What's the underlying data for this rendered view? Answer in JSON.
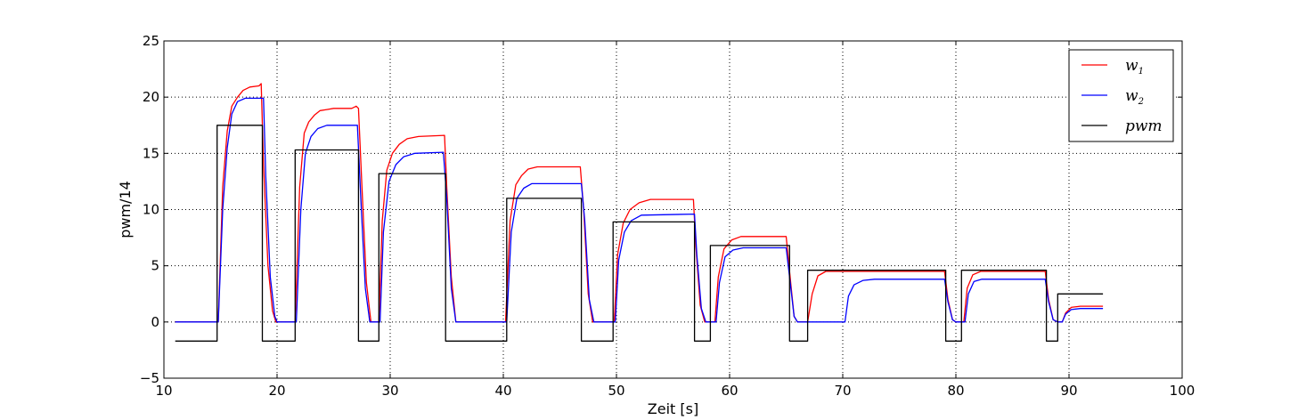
{
  "chart_data": {
    "type": "line",
    "xlabel": "Zeit [s]",
    "ylabel": "pwm/14",
    "xlim": [
      10,
      100
    ],
    "ylim": [
      -5,
      25
    ],
    "xticks": [
      10,
      20,
      30,
      40,
      50,
      60,
      70,
      80,
      90,
      100
    ],
    "yticks": [
      -5,
      0,
      5,
      10,
      15,
      20,
      25
    ],
    "grid": true,
    "legend_position": "top-right",
    "series": [
      {
        "name": "w_1",
        "legend_base": "w",
        "legend_sub": "1",
        "color": "#ff0000",
        "points": [
          [
            11,
            0
          ],
          [
            14.8,
            0
          ],
          [
            15.2,
            12
          ],
          [
            15.6,
            17
          ],
          [
            16.0,
            19.2
          ],
          [
            16.5,
            20.0
          ],
          [
            17.0,
            20.6
          ],
          [
            17.6,
            20.9
          ],
          [
            18.4,
            21.0
          ],
          [
            18.6,
            21.2
          ],
          [
            18.8,
            14
          ],
          [
            19.2,
            5
          ],
          [
            19.6,
            1.0
          ],
          [
            19.9,
            0
          ],
          [
            21.6,
            0
          ],
          [
            22.0,
            12
          ],
          [
            22.4,
            16.8
          ],
          [
            22.8,
            17.8
          ],
          [
            23.3,
            18.4
          ],
          [
            23.8,
            18.8
          ],
          [
            24.4,
            18.9
          ],
          [
            25.0,
            19.0
          ],
          [
            26.6,
            19.0
          ],
          [
            27.0,
            19.2
          ],
          [
            27.2,
            19.0
          ],
          [
            27.5,
            12
          ],
          [
            27.9,
            3.5
          ],
          [
            28.3,
            0
          ],
          [
            29.0,
            0
          ],
          [
            29.3,
            9
          ],
          [
            29.7,
            13.5
          ],
          [
            30.2,
            15.0
          ],
          [
            30.8,
            15.8
          ],
          [
            31.5,
            16.3
          ],
          [
            32.5,
            16.5
          ],
          [
            34.8,
            16.6
          ],
          [
            35.0,
            12
          ],
          [
            35.4,
            4
          ],
          [
            35.8,
            0
          ],
          [
            40.2,
            0
          ],
          [
            40.6,
            9
          ],
          [
            41.1,
            12.2
          ],
          [
            41.6,
            13.0
          ],
          [
            42.2,
            13.6
          ],
          [
            43.0,
            13.8
          ],
          [
            46.8,
            13.8
          ],
          [
            47.1,
            10
          ],
          [
            47.5,
            2.5
          ],
          [
            47.9,
            0
          ],
          [
            49.8,
            0
          ],
          [
            50.1,
            6
          ],
          [
            50.6,
            8.8
          ],
          [
            51.2,
            10.0
          ],
          [
            52.0,
            10.6
          ],
          [
            53.0,
            10.9
          ],
          [
            56.8,
            10.9
          ],
          [
            57.0,
            7
          ],
          [
            57.4,
            1.5
          ],
          [
            57.8,
            0
          ],
          [
            58.7,
            0
          ],
          [
            59.0,
            4
          ],
          [
            59.5,
            6.5
          ],
          [
            60.2,
            7.3
          ],
          [
            61.0,
            7.6
          ],
          [
            65.0,
            7.6
          ],
          [
            65.3,
            4.5
          ],
          [
            65.7,
            0.5
          ],
          [
            66.0,
            0
          ],
          [
            66.9,
            0
          ],
          [
            67.3,
            2.5
          ],
          [
            67.8,
            4.1
          ],
          [
            68.5,
            4.5
          ],
          [
            79.0,
            4.5
          ],
          [
            79.3,
            2
          ],
          [
            79.7,
            0.2
          ],
          [
            80.0,
            0
          ],
          [
            80.7,
            0
          ],
          [
            81.0,
            3.0
          ],
          [
            81.5,
            4.2
          ],
          [
            82.2,
            4.5
          ],
          [
            87.9,
            4.5
          ],
          [
            88.2,
            2
          ],
          [
            88.6,
            0.2
          ],
          [
            89.0,
            0
          ],
          [
            89.4,
            0
          ],
          [
            89.7,
            0.8
          ],
          [
            90.2,
            1.3
          ],
          [
            91.0,
            1.4
          ],
          [
            93.0,
            1.4
          ]
        ]
      },
      {
        "name": "w_2",
        "legend_base": "w",
        "legend_sub": "2",
        "color": "#0000ff",
        "points": [
          [
            11,
            0
          ],
          [
            14.8,
            0
          ],
          [
            15.2,
            10
          ],
          [
            15.6,
            15.5
          ],
          [
            16.0,
            18.5
          ],
          [
            16.5,
            19.6
          ],
          [
            17.2,
            19.9
          ],
          [
            18.8,
            19.9
          ],
          [
            19.0,
            13
          ],
          [
            19.4,
            4
          ],
          [
            19.8,
            0.5
          ],
          [
            20.0,
            0
          ],
          [
            21.7,
            0
          ],
          [
            22.1,
            10
          ],
          [
            22.5,
            15.0
          ],
          [
            23.0,
            16.5
          ],
          [
            23.6,
            17.2
          ],
          [
            24.4,
            17.5
          ],
          [
            27.1,
            17.5
          ],
          [
            27.4,
            11
          ],
          [
            27.8,
            3
          ],
          [
            28.2,
            0
          ],
          [
            29.1,
            0
          ],
          [
            29.4,
            8
          ],
          [
            29.9,
            12.5
          ],
          [
            30.5,
            14.0
          ],
          [
            31.2,
            14.7
          ],
          [
            32.2,
            15.0
          ],
          [
            34.7,
            15.1
          ],
          [
            35.0,
            11
          ],
          [
            35.4,
            3
          ],
          [
            35.8,
            0
          ],
          [
            40.3,
            0
          ],
          [
            40.7,
            8
          ],
          [
            41.2,
            11.0
          ],
          [
            41.8,
            11.9
          ],
          [
            42.5,
            12.3
          ],
          [
            46.9,
            12.3
          ],
          [
            47.2,
            9
          ],
          [
            47.6,
            2
          ],
          [
            48.0,
            0
          ],
          [
            49.9,
            0
          ],
          [
            50.2,
            5.5
          ],
          [
            50.7,
            8.0
          ],
          [
            51.3,
            9.0
          ],
          [
            52.2,
            9.5
          ],
          [
            56.9,
            9.6
          ],
          [
            57.1,
            6
          ],
          [
            57.5,
            1.2
          ],
          [
            57.9,
            0
          ],
          [
            58.8,
            0
          ],
          [
            59.1,
            3.5
          ],
          [
            59.6,
            5.8
          ],
          [
            60.3,
            6.4
          ],
          [
            61.2,
            6.6
          ],
          [
            65.0,
            6.6
          ],
          [
            65.3,
            4
          ],
          [
            65.7,
            0.5
          ],
          [
            66.0,
            0
          ],
          [
            70.2,
            0
          ],
          [
            70.5,
            2.3
          ],
          [
            71.0,
            3.3
          ],
          [
            71.8,
            3.7
          ],
          [
            72.8,
            3.8
          ],
          [
            79.0,
            3.8
          ],
          [
            79.3,
            1.8
          ],
          [
            79.7,
            0.2
          ],
          [
            80.0,
            0
          ],
          [
            80.8,
            0
          ],
          [
            81.1,
            2.5
          ],
          [
            81.6,
            3.6
          ],
          [
            82.3,
            3.8
          ],
          [
            87.9,
            3.8
          ],
          [
            88.2,
            1.8
          ],
          [
            88.6,
            0.2
          ],
          [
            89.0,
            0
          ],
          [
            89.4,
            0
          ],
          [
            89.7,
            0.7
          ],
          [
            90.2,
            1.1
          ],
          [
            91.0,
            1.2
          ],
          [
            93.0,
            1.2
          ]
        ]
      },
      {
        "name": "pwm",
        "legend_base": "pwm",
        "legend_sub": "",
        "color": "#000000",
        "points": [
          [
            11,
            -1.7
          ],
          [
            14.7,
            -1.7
          ],
          [
            14.7,
            17.5
          ],
          [
            18.7,
            17.5
          ],
          [
            18.7,
            -1.7
          ],
          [
            21.6,
            -1.7
          ],
          [
            21.6,
            15.3
          ],
          [
            27.2,
            15.3
          ],
          [
            27.2,
            -1.7
          ],
          [
            29.0,
            -1.7
          ],
          [
            29.0,
            13.2
          ],
          [
            34.9,
            13.2
          ],
          [
            34.9,
            -1.7
          ],
          [
            40.3,
            -1.7
          ],
          [
            40.3,
            11.0
          ],
          [
            46.9,
            11.0
          ],
          [
            46.9,
            -1.7
          ],
          [
            49.7,
            -1.7
          ],
          [
            49.7,
            8.9
          ],
          [
            56.9,
            8.9
          ],
          [
            56.9,
            -1.7
          ],
          [
            58.3,
            -1.7
          ],
          [
            58.3,
            6.8
          ],
          [
            65.3,
            6.8
          ],
          [
            65.3,
            -1.7
          ],
          [
            66.9,
            -1.7
          ],
          [
            66.9,
            4.6
          ],
          [
            79.1,
            4.6
          ],
          [
            79.1,
            -1.7
          ],
          [
            80.5,
            -1.7
          ],
          [
            80.5,
            4.6
          ],
          [
            88.0,
            4.6
          ],
          [
            88.0,
            -1.7
          ],
          [
            89.0,
            -1.7
          ],
          [
            89.0,
            2.5
          ],
          [
            93.0,
            2.5
          ]
        ]
      }
    ]
  }
}
